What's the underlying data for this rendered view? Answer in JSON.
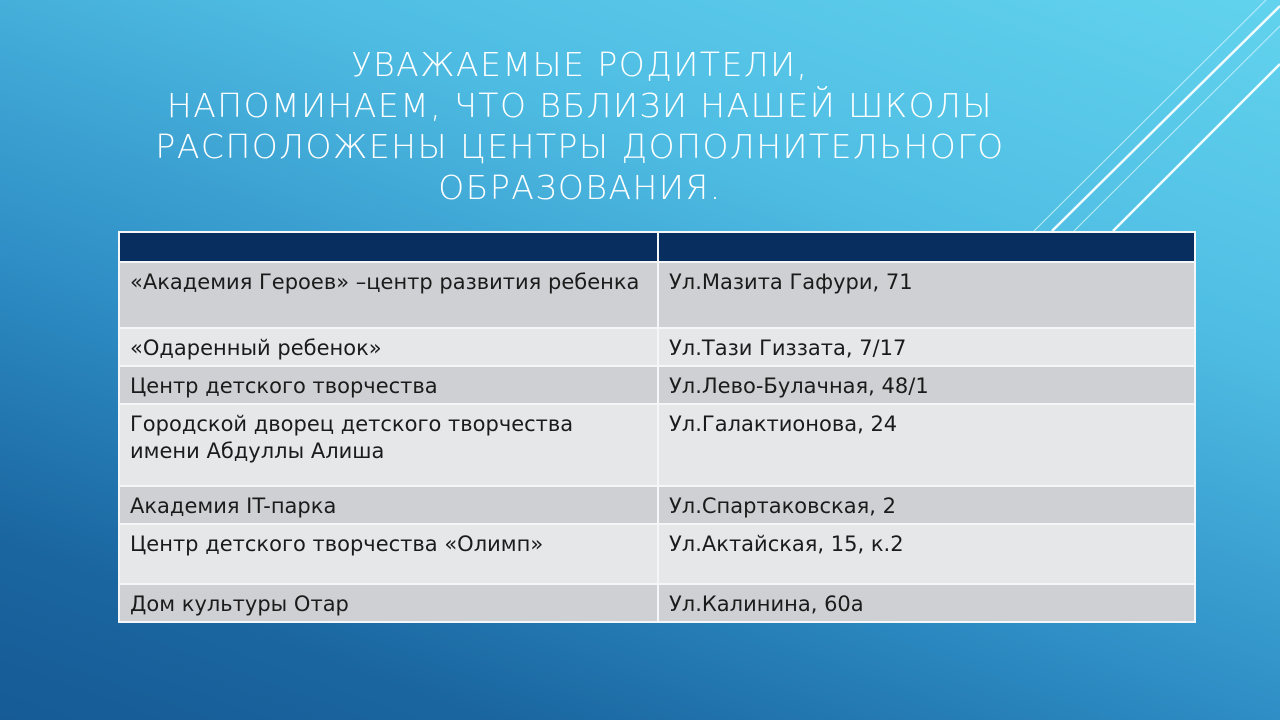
{
  "slide": {
    "title_lines": [
      "УВАЖАЕМЫЕ РОДИТЕЛИ,",
      "НАПОМИНАЕМ, ЧТО ВБЛИЗИ НАШЕЙ ШКОЛЫ",
      "РАСПОЛОЖЕНЫ ЦЕНТРЫ ДОПОЛНИТЕЛЬНОГО",
      "ОБРАЗОВАНИЯ."
    ],
    "table": {
      "header": [
        "",
        ""
      ],
      "rows": [
        {
          "name": "«Академия Героев» –центр развития ребенка",
          "address": "Ул.Мазита Гафури, 71"
        },
        {
          "name": "«Одаренный ребенок»",
          "address": "Ул.Тази Гиззата, 7/17"
        },
        {
          "name": "Центр детского творчества",
          "address": "Ул.Лево-Булачная, 48/1"
        },
        {
          "name": "Городской дворец детского творчества имени Абдуллы Алиша",
          "address": "Ул.Галактионова, 24"
        },
        {
          "name": "Академия IT-парка",
          "address": "Ул.Спартаковская, 2"
        },
        {
          "name": "Центр детского творчества «Олимп»",
          "address": "Ул.Актайская, 15, к.2"
        },
        {
          "name": "Дом культуры Отар",
          "address": "Ул.Калинина, 60а"
        }
      ]
    },
    "colors": {
      "header": "#082e60",
      "row_dark": "#cfd0d4",
      "row_light": "#e6e7e9",
      "bg_top": "#62d3ee",
      "bg_bottom": "#165b96"
    }
  }
}
